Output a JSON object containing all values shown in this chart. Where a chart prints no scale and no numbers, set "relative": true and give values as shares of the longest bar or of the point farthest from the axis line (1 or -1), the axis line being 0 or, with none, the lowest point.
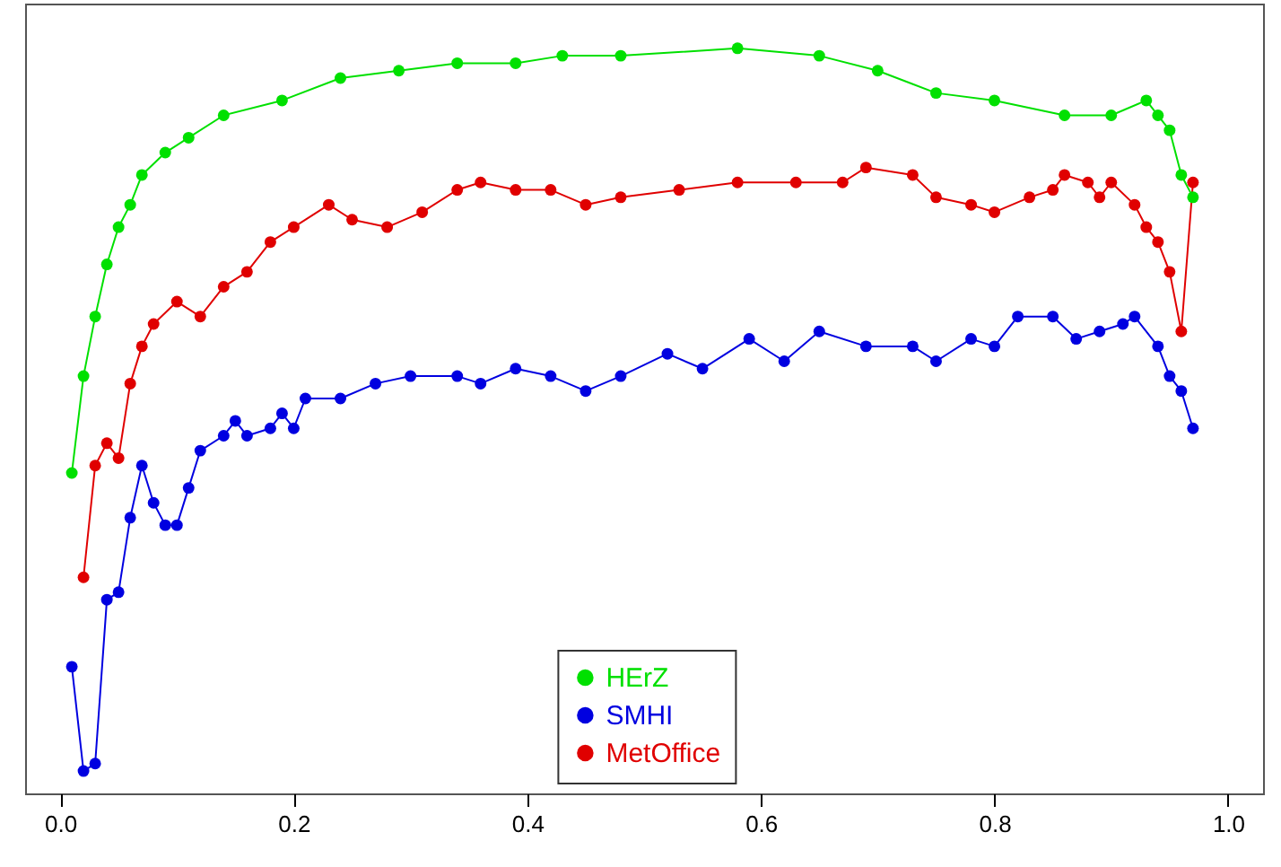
{
  "chart_data": {
    "type": "line",
    "relative": true,
    "marker": "circle",
    "line_style": "solid",
    "grid": false,
    "legend": "bottom",
    "xlim": [
      -0.03,
      1.03
    ],
    "xticks": [
      {
        "value": 0,
        "label": "0.0"
      },
      {
        "value": 0.2,
        "label": "0.2"
      },
      {
        "value": 0.4,
        "label": "0.4"
      },
      {
        "value": 0.6,
        "label": "0.6"
      },
      {
        "value": 0.8,
        "label": "0.8"
      },
      {
        "value": 1,
        "label": "1.0"
      }
    ],
    "series": [
      {
        "name": "HErZ",
        "color": "#00e000",
        "x": [
          0.01,
          0.02,
          0.03,
          0.04,
          0.05,
          0.06,
          0.07,
          0.09,
          0.11,
          0.14,
          0.19,
          0.24,
          0.29,
          0.34,
          0.39,
          0.43,
          0.48,
          0.58,
          0.65,
          0.7,
          0.75,
          0.8,
          0.86,
          0.9,
          0.93,
          0.94,
          0.95,
          0.96,
          0.97
        ],
        "values": [
          0.43,
          0.56,
          0.64,
          0.71,
          0.76,
          0.79,
          0.83,
          0.86,
          0.88,
          0.91,
          0.93,
          0.96,
          0.97,
          0.98,
          0.98,
          0.99,
          0.99,
          1,
          0.99,
          0.97,
          0.94,
          0.93,
          0.91,
          0.91,
          0.93,
          0.91,
          0.89,
          0.83,
          0.8
        ]
      },
      {
        "name": "SMHI",
        "color": "#0000e0",
        "x": [
          0.01,
          0.02,
          0.03,
          0.04,
          0.05,
          0.06,
          0.07,
          0.08,
          0.09,
          0.1,
          0.11,
          0.12,
          0.14,
          0.15,
          0.16,
          0.18,
          0.19,
          0.2,
          0.21,
          0.24,
          0.27,
          0.3,
          0.34,
          0.36,
          0.39,
          0.42,
          0.45,
          0.48,
          0.52,
          0.55,
          0.59,
          0.62,
          0.65,
          0.69,
          0.73,
          0.75,
          0.78,
          0.8,
          0.82,
          0.85,
          0.87,
          0.89,
          0.91,
          0.92,
          0.94,
          0.95,
          0.96,
          0.97
        ],
        "values": [
          0.17,
          0.03,
          0.04,
          0.26,
          0.27,
          0.37,
          0.44,
          0.39,
          0.36,
          0.36,
          0.41,
          0.46,
          0.48,
          0.5,
          0.48,
          0.49,
          0.51,
          0.49,
          0.53,
          0.53,
          0.55,
          0.56,
          0.56,
          0.55,
          0.57,
          0.56,
          0.54,
          0.56,
          0.59,
          0.57,
          0.61,
          0.58,
          0.62,
          0.6,
          0.6,
          0.58,
          0.61,
          0.6,
          0.64,
          0.64,
          0.61,
          0.62,
          0.63,
          0.64,
          0.6,
          0.56,
          0.54,
          0.49
        ]
      },
      {
        "name": "MetOffice",
        "color": "#e00000",
        "x": [
          0.02,
          0.03,
          0.04,
          0.05,
          0.06,
          0.07,
          0.08,
          0.1,
          0.12,
          0.14,
          0.16,
          0.18,
          0.2,
          0.23,
          0.25,
          0.28,
          0.31,
          0.34,
          0.36,
          0.39,
          0.42,
          0.45,
          0.48,
          0.53,
          0.58,
          0.63,
          0.67,
          0.69,
          0.73,
          0.75,
          0.78,
          0.8,
          0.83,
          0.85,
          0.86,
          0.88,
          0.89,
          0.9,
          0.92,
          0.93,
          0.94,
          0.95,
          0.96,
          0.97
        ],
        "values": [
          0.29,
          0.44,
          0.47,
          0.45,
          0.55,
          0.6,
          0.63,
          0.66,
          0.64,
          0.68,
          0.7,
          0.74,
          0.76,
          0.79,
          0.77,
          0.76,
          0.78,
          0.81,
          0.82,
          0.81,
          0.81,
          0.79,
          0.8,
          0.81,
          0.82,
          0.82,
          0.82,
          0.84,
          0.83,
          0.8,
          0.79,
          0.78,
          0.8,
          0.81,
          0.83,
          0.82,
          0.8,
          0.82,
          0.79,
          0.76,
          0.74,
          0.7,
          0.62,
          0.82
        ]
      }
    ]
  }
}
